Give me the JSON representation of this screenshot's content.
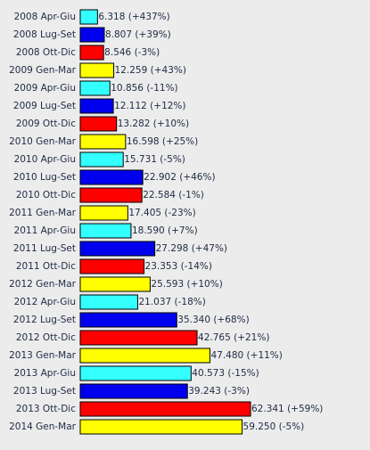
{
  "chart_data": {
    "type": "bar",
    "orientation": "horizontal",
    "categories": [
      "2008 Apr-Giu",
      "2008 Lug-Set",
      "2008 Ott-Dic",
      "2009 Gen-Mar",
      "2009 Apr-Giu",
      "2009 Lug-Set",
      "2009 Ott-Dic",
      "2010 Gen-Mar",
      "2010 Apr-Giu",
      "2010 Lug-Set",
      "2010 Ott-Dic",
      "2011 Gen-Mar",
      "2011 Apr-Giu",
      "2011 Lug-Set",
      "2011 Ott-Dic",
      "2012 Gen-Mar",
      "2012 Apr-Giu",
      "2012 Lug-Set",
      "2012 Ott-Dic",
      "2013 Gen-Mar",
      "2013 Apr-Giu",
      "2013 Lug-Set",
      "2013 Ott-Dic",
      "2014 Gen-Mar"
    ],
    "values": [
      6.318,
      8.807,
      8.546,
      12.259,
      10.856,
      12.112,
      13.282,
      16.598,
      15.731,
      22.902,
      22.584,
      17.405,
      18.59,
      27.298,
      23.353,
      25.593,
      21.037,
      35.34,
      42.765,
      47.48,
      40.573,
      39.243,
      62.341,
      59.25
    ],
    "value_labels": [
      "6.318 (+437%)",
      "8.807 (+39%)",
      "8.546 (-3%)",
      "12.259 (+43%)",
      "10.856 (-11%)",
      "12.112 (+12%)",
      "13.282 (+10%)",
      "16.598 (+25%)",
      "15.731 (-5%)",
      "22.902 (+46%)",
      "22.584 (-1%)",
      "17.405 (-23%)",
      "18.590 (+7%)",
      "27.298 (+47%)",
      "23.353 (-14%)",
      "25.593 (+10%)",
      "21.037 (-18%)",
      "35.340 (+68%)",
      "42.765 (+21%)",
      "47.480 (+11%)",
      "40.573 (-15%)",
      "39.243 (-3%)",
      "62.341 (+59%)",
      "59.250 (-5%)"
    ],
    "colors": [
      "#33ffff",
      "#0000ee",
      "#ff0000",
      "#ffff00",
      "#33ffff",
      "#0000ee",
      "#ff0000",
      "#ffff00",
      "#33ffff",
      "#0000ee",
      "#ff0000",
      "#ffff00",
      "#33ffff",
      "#0000ee",
      "#ff0000",
      "#ffff00",
      "#33ffff",
      "#0000ee",
      "#ff0000",
      "#ffff00",
      "#33ffff",
      "#0000ee",
      "#ff0000",
      "#ffff00"
    ]
  }
}
